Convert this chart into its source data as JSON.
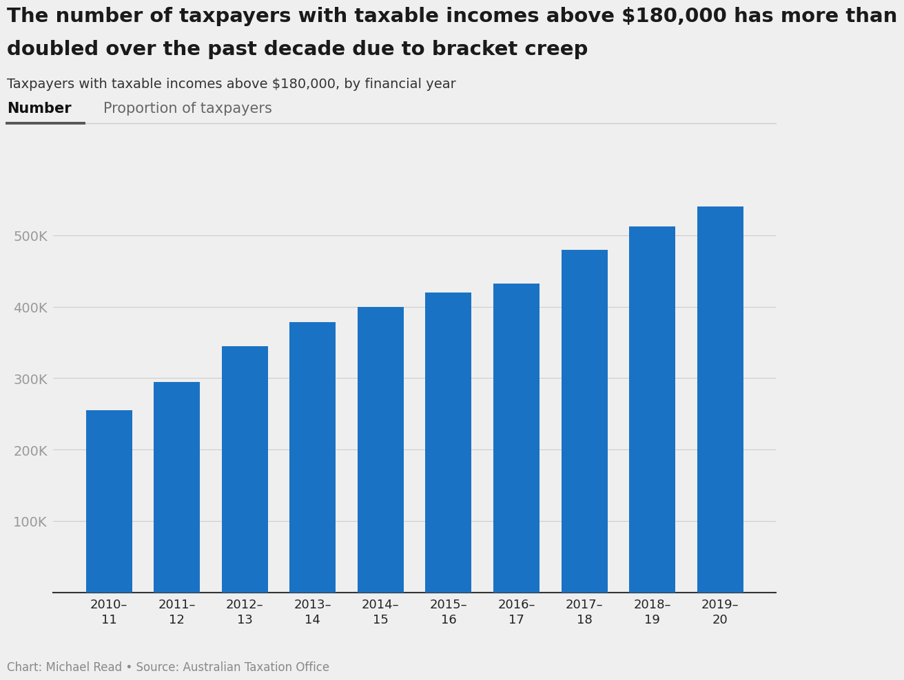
{
  "title_line1": "The number of taxpayers with taxable incomes above $180,000 has more than",
  "title_line2": "doubled over the past decade due to bracket creep",
  "subtitle": "Taxpayers with taxable incomes above $180,000, by financial year",
  "tab1": "Number",
  "tab2": "Proportion of taxpayers",
  "footer": "Chart: Michael Read • Source: Australian Taxation Office",
  "categories": [
    "2010–\n11",
    "2011–\n12",
    "2012–\n13",
    "2013–\n14",
    "2014–\n15",
    "2015–\n16",
    "2016–\n17",
    "2017–\n18",
    "2018–\n19",
    "2019–\n20"
  ],
  "values": [
    255000,
    295000,
    345000,
    378000,
    400000,
    420000,
    432000,
    480000,
    512000,
    540000
  ],
  "bar_color": "#1a72c4",
  "background_color": "#efefef",
  "yticks": [
    100000,
    200000,
    300000,
    400000,
    500000
  ],
  "ylim": [
    0,
    570000
  ],
  "title_fontsize": 21,
  "subtitle_fontsize": 14,
  "tab_fontsize": 15,
  "ytick_fontsize": 14,
  "xtick_fontsize": 13,
  "footer_fontsize": 12
}
